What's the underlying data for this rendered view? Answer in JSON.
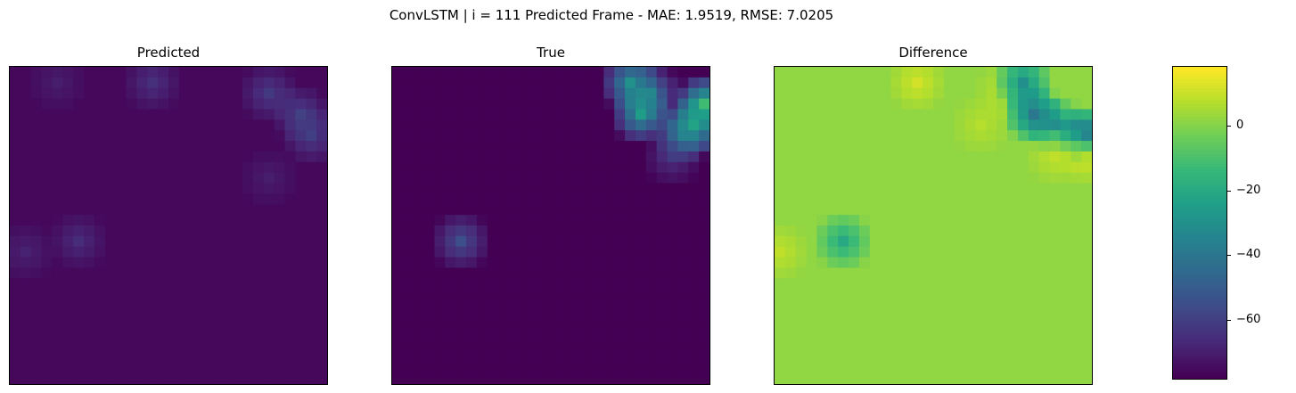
{
  "figure": {
    "suptitle": "ConvLSTM | i = 111 Predicted Frame - MAE: 1.9519, RMSE: 7.0205"
  },
  "chart_data": [
    {
      "type": "heatmap",
      "title": "Predicted",
      "grid": [
        30,
        30
      ],
      "colormap": "viridis",
      "vmin": -78,
      "vmax": 18,
      "background": -76,
      "hotspots": [
        {
          "row": 1,
          "col": 4,
          "value": -68
        },
        {
          "row": 1,
          "col": 13,
          "value": -60
        },
        {
          "row": 2,
          "col": 24,
          "value": -56
        },
        {
          "row": 4,
          "col": 27,
          "value": -54
        },
        {
          "row": 6,
          "col": 28,
          "value": -55
        },
        {
          "row": 10,
          "col": 24,
          "value": -68
        },
        {
          "row": 16,
          "col": 6,
          "value": -62
        },
        {
          "row": 17,
          "col": 1,
          "value": -66
        }
      ]
    },
    {
      "type": "heatmap",
      "title": "True",
      "grid": [
        30,
        30
      ],
      "colormap": "viridis",
      "vmin": -78,
      "vmax": 18,
      "background": -78,
      "hotspots": [
        {
          "row": 1,
          "col": 22,
          "value": -10
        },
        {
          "row": 2,
          "col": 24,
          "value": -28
        },
        {
          "row": 4,
          "col": 23,
          "value": -6
        },
        {
          "row": 3,
          "col": 29,
          "value": 15
        },
        {
          "row": 5,
          "col": 28,
          "value": -8
        },
        {
          "row": 6,
          "col": 27,
          "value": -20
        },
        {
          "row": 8,
          "col": 26,
          "value": -58
        },
        {
          "row": 16,
          "col": 6,
          "value": -45
        }
      ]
    },
    {
      "type": "heatmap",
      "title": "Difference",
      "grid": [
        30,
        30
      ],
      "colormap": "viridis",
      "vmin": -78,
      "vmax": 18,
      "background": 2,
      "hotspots": [
        {
          "row": 1,
          "col": 13,
          "value": 16
        },
        {
          "row": 2,
          "col": 21,
          "value": 10
        },
        {
          "row": 1,
          "col": 23,
          "value": -45
        },
        {
          "row": 4,
          "col": 24,
          "value": -58
        },
        {
          "row": 5,
          "col": 26,
          "value": -40
        },
        {
          "row": 6,
          "col": 29,
          "value": -70
        },
        {
          "row": 8,
          "col": 29,
          "value": 16
        },
        {
          "row": 8,
          "col": 26,
          "value": 12
        },
        {
          "row": 16,
          "col": 6,
          "value": -30
        },
        {
          "row": 17,
          "col": 0,
          "value": 12
        },
        {
          "row": 5,
          "col": 19,
          "value": 10
        }
      ]
    }
  ],
  "colorbar": {
    "colormap": "viridis",
    "vmin": -78,
    "vmax": 18,
    "ticks": [
      0,
      -20,
      -40,
      -60
    ],
    "tick_labels": [
      "0",
      "−20",
      "−40",
      "−60"
    ]
  }
}
